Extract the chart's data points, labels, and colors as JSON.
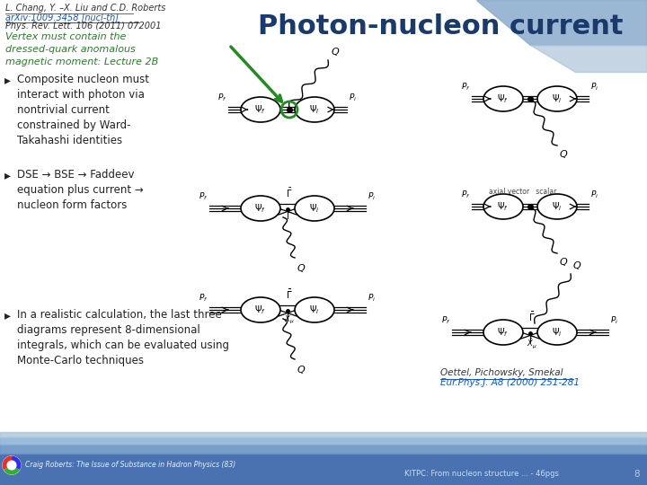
{
  "title": "Photon-nucleon current",
  "title_color": "#1a3a6b",
  "title_fontsize": 22,
  "bg_color": "#e8edf2",
  "ref_line1": "L. Chang, Y. –X. Liu and C.D. Roberts",
  "ref_line2": "arXiv:1009.3458 [nucl-th]",
  "ref_line3": "Phys. Rev. Lett. 106 (2011) 072001",
  "italic_text": "Vertex must contain the\ndressed-quark anomalous\nmagnetic moment: Lecture 2B",
  "bullet1": "Composite nucleon must\ninteract with photon via\nnontrivial current\nconstrained by Ward-\nTakahashi identities",
  "bullet2": "DSE → BSE → Faddeev\nequation plus current →\nnucleon form factors",
  "bullet3": "In a realistic calculation, the last three\ndiagrams represent 8-dimensional\nintegrals, which can be evaluated using\nMonte-Carlo techniques",
  "footer_left": "Craig Roberts: The Issue of Substance in Hadron Physics (83)",
  "footer_right": "KITPC: From nucleon structure ... - 46pgs",
  "footer_page": "8",
  "green_color": "#228B22",
  "oettel_ref": "Oettel, Pichowsky, Smekal",
  "oettel_ref2": "Eur.Phys.J. A8 (2000) 251-281",
  "ref_color": "#333333",
  "link_color": "#1155cc",
  "text_color": "#222222",
  "green_text_color": "#2d7a2d"
}
